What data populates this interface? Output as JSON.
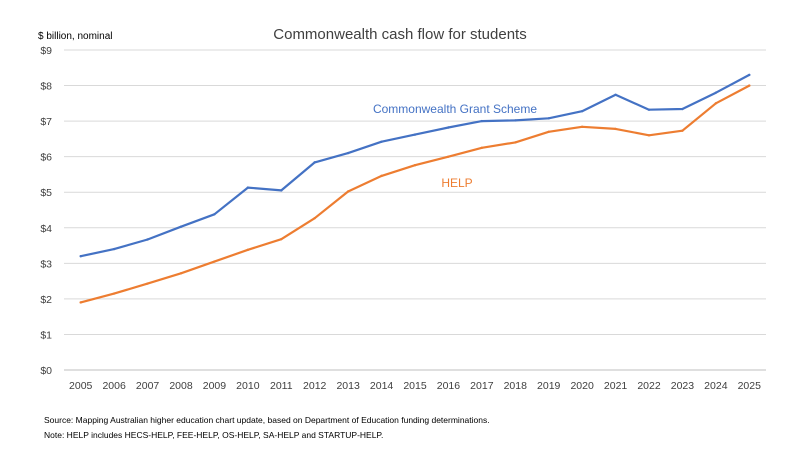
{
  "chart_data": {
    "type": "line",
    "title": "Commonwealth cash flow for students",
    "ylabel": "$ billion,  nominal",
    "xlabel": "",
    "ylim": [
      0,
      9
    ],
    "yticks": [
      "$0",
      "$1",
      "$2",
      "$3",
      "$4",
      "$5",
      "$6",
      "$7",
      "$8",
      "$9"
    ],
    "categories": [
      "2005",
      "2006",
      "2007",
      "2008",
      "2009",
      "2010",
      "2011",
      "2012",
      "2013",
      "2014",
      "2015",
      "2016",
      "2017",
      "2018",
      "2019",
      "2020",
      "2021",
      "2022",
      "2023",
      "2024",
      "2025"
    ],
    "grid": true,
    "legend": "inline labels",
    "series": [
      {
        "name": "Commonwealth Grant Scheme",
        "color": "#4472C4",
        "values": [
          3.2,
          3.4,
          3.67,
          4.03,
          4.38,
          5.13,
          5.05,
          5.84,
          6.1,
          6.42,
          6.62,
          6.82,
          7.0,
          7.02,
          7.08,
          7.28,
          7.74,
          7.32,
          7.34,
          7.8,
          8.3
        ]
      },
      {
        "name": "HELP",
        "color": "#ED7D31",
        "values": [
          1.9,
          2.15,
          2.43,
          2.72,
          3.05,
          3.38,
          3.68,
          4.27,
          5.02,
          5.46,
          5.76,
          6.0,
          6.25,
          6.4,
          6.7,
          6.84,
          6.78,
          6.6,
          6.73,
          7.5,
          8.0
        ]
      }
    ]
  },
  "footnotes": {
    "source": "Source: Mapping Australian higher education chart update, based on Department of Education funding determinations.",
    "note": "Note: HELP includes HECS-HELP, FEE-HELP, OS-HELP, SA-HELP and STARTUP-HELP."
  }
}
